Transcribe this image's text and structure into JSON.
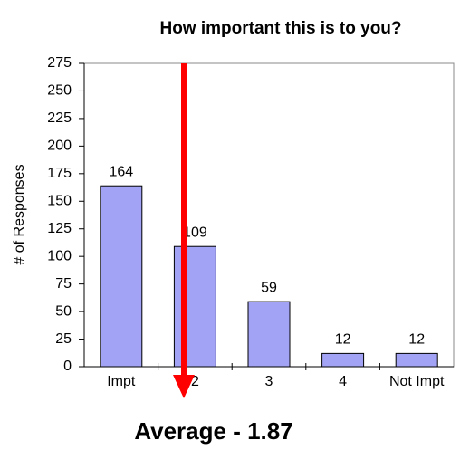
{
  "chart_data": {
    "type": "bar",
    "title": "How important this is to you?",
    "ylabel": "# of Responses",
    "categories": [
      "Impt",
      "2",
      "3",
      "4",
      "Not Impt"
    ],
    "values": [
      164,
      109,
      59,
      12,
      12
    ],
    "color": "#a3a3f5",
    "ylim": [
      0,
      275
    ],
    "yticks": [
      0,
      25,
      50,
      75,
      100,
      125,
      150,
      175,
      200,
      225,
      250,
      275
    ],
    "annotation": "Average - 1.87"
  }
}
